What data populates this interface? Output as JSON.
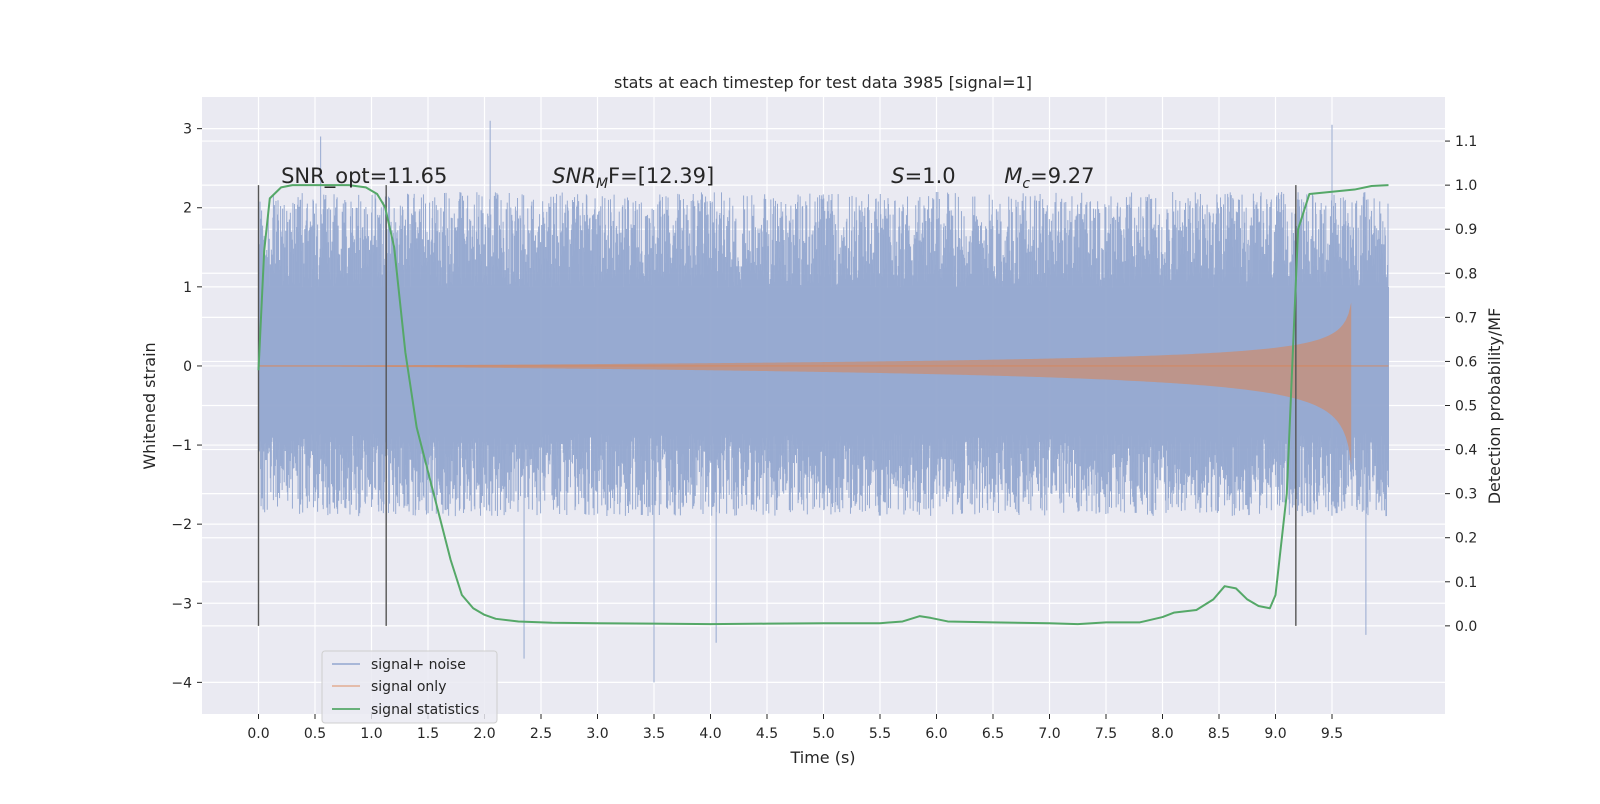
{
  "chart_data": {
    "type": "line",
    "title": "stats at each timestep for test data 3985 [signal=1]",
    "xlabel": "Time (s)",
    "ylabel_left": "Whitened strain",
    "ylabel_right": "Detection probability/MF",
    "xlim": [
      -0.5,
      10.5
    ],
    "ylim_left": [
      -4.4,
      3.4
    ],
    "ylim_right": [
      -0.2,
      1.2
    ],
    "x_ticks": [
      "0.0",
      "0.5",
      "1.0",
      "1.5",
      "2.0",
      "2.5",
      "3.0",
      "3.5",
      "4.0",
      "4.5",
      "5.0",
      "5.5",
      "6.0",
      "6.5",
      "7.0",
      "7.5",
      "8.0",
      "8.5",
      "9.0",
      "9.5"
    ],
    "y_ticks_left": [
      -4,
      -3,
      -2,
      -1,
      0,
      1,
      2,
      3
    ],
    "y_ticks_right": [
      0.0,
      0.1,
      0.2,
      0.3,
      0.4,
      0.5,
      0.6,
      0.7,
      0.8,
      0.9,
      1.0,
      1.1
    ],
    "grid": true,
    "legend_position": "lower-left",
    "annotations": [
      {
        "x": 0.2,
        "y_right": 1.0,
        "prefix": "SNR_opt=",
        "value": "11.65"
      },
      {
        "x": 2.6,
        "y_right": 1.0,
        "prefix": "SNR",
        "sub": "M",
        "suffix": "F=",
        "value": "[12.39]"
      },
      {
        "x": 5.6,
        "y_right": 1.0,
        "prefix": "S",
        "suffix": "=",
        "value": "1.0"
      },
      {
        "x": 6.6,
        "y_right": 1.0,
        "prefix": "M",
        "sub": "c",
        "suffix": "=",
        "value": "9.27"
      }
    ],
    "vertical_markers_x": [
      0.0,
      1.13,
      9.18
    ],
    "series": [
      {
        "name": "signal+ noise",
        "color": "#92a6cf",
        "axis": "left",
        "kind": "noise",
        "x_range": [
          0.0,
          10.0
        ],
        "typical_range": [
          -1.9,
          2.2
        ],
        "extremes": [
          [
            0.55,
            2.9
          ],
          [
            2.05,
            3.1
          ],
          [
            2.35,
            -3.7
          ],
          [
            3.5,
            -4.0
          ],
          [
            4.05,
            -3.5
          ],
          [
            9.5,
            3.05
          ],
          [
            9.8,
            -3.4
          ]
        ]
      },
      {
        "name": "signal only",
        "color": "#dd8452",
        "axis": "left",
        "kind": "chirp",
        "x_range": [
          0.0,
          9.67
        ],
        "peak_x": 9.67,
        "peak_amplitude": 1.05
      },
      {
        "name": "signal statistics",
        "color": "#55a868",
        "axis": "right",
        "kind": "curve",
        "points": [
          [
            0.0,
            0.58
          ],
          [
            0.05,
            0.85
          ],
          [
            0.1,
            0.97
          ],
          [
            0.2,
            0.995
          ],
          [
            0.3,
            1.0
          ],
          [
            0.5,
            1.0
          ],
          [
            0.8,
            1.0
          ],
          [
            0.95,
            0.995
          ],
          [
            1.05,
            0.98
          ],
          [
            1.12,
            0.95
          ],
          [
            1.2,
            0.86
          ],
          [
            1.3,
            0.62
          ],
          [
            1.4,
            0.45
          ],
          [
            1.5,
            0.35
          ],
          [
            1.6,
            0.25
          ],
          [
            1.7,
            0.15
          ],
          [
            1.8,
            0.07
          ],
          [
            1.9,
            0.04
          ],
          [
            2.0,
            0.025
          ],
          [
            2.1,
            0.016
          ],
          [
            2.3,
            0.01
          ],
          [
            2.6,
            0.007
          ],
          [
            3.0,
            0.006
          ],
          [
            3.5,
            0.005
          ],
          [
            4.0,
            0.004
          ],
          [
            4.5,
            0.005
          ],
          [
            5.0,
            0.006
          ],
          [
            5.5,
            0.006
          ],
          [
            5.7,
            0.01
          ],
          [
            5.85,
            0.022
          ],
          [
            5.95,
            0.018
          ],
          [
            6.1,
            0.01
          ],
          [
            6.5,
            0.008
          ],
          [
            7.0,
            0.006
          ],
          [
            7.25,
            0.004
          ],
          [
            7.5,
            0.008
          ],
          [
            7.8,
            0.008
          ],
          [
            8.0,
            0.02
          ],
          [
            8.1,
            0.03
          ],
          [
            8.3,
            0.036
          ],
          [
            8.45,
            0.06
          ],
          [
            8.55,
            0.09
          ],
          [
            8.65,
            0.085
          ],
          [
            8.75,
            0.06
          ],
          [
            8.85,
            0.045
          ],
          [
            8.95,
            0.04
          ],
          [
            9.0,
            0.07
          ],
          [
            9.1,
            0.3
          ],
          [
            9.2,
            0.9
          ],
          [
            9.3,
            0.98
          ],
          [
            9.5,
            0.985
          ],
          [
            9.7,
            0.99
          ],
          [
            9.85,
            0.998
          ],
          [
            10.0,
            1.0
          ]
        ]
      }
    ]
  }
}
